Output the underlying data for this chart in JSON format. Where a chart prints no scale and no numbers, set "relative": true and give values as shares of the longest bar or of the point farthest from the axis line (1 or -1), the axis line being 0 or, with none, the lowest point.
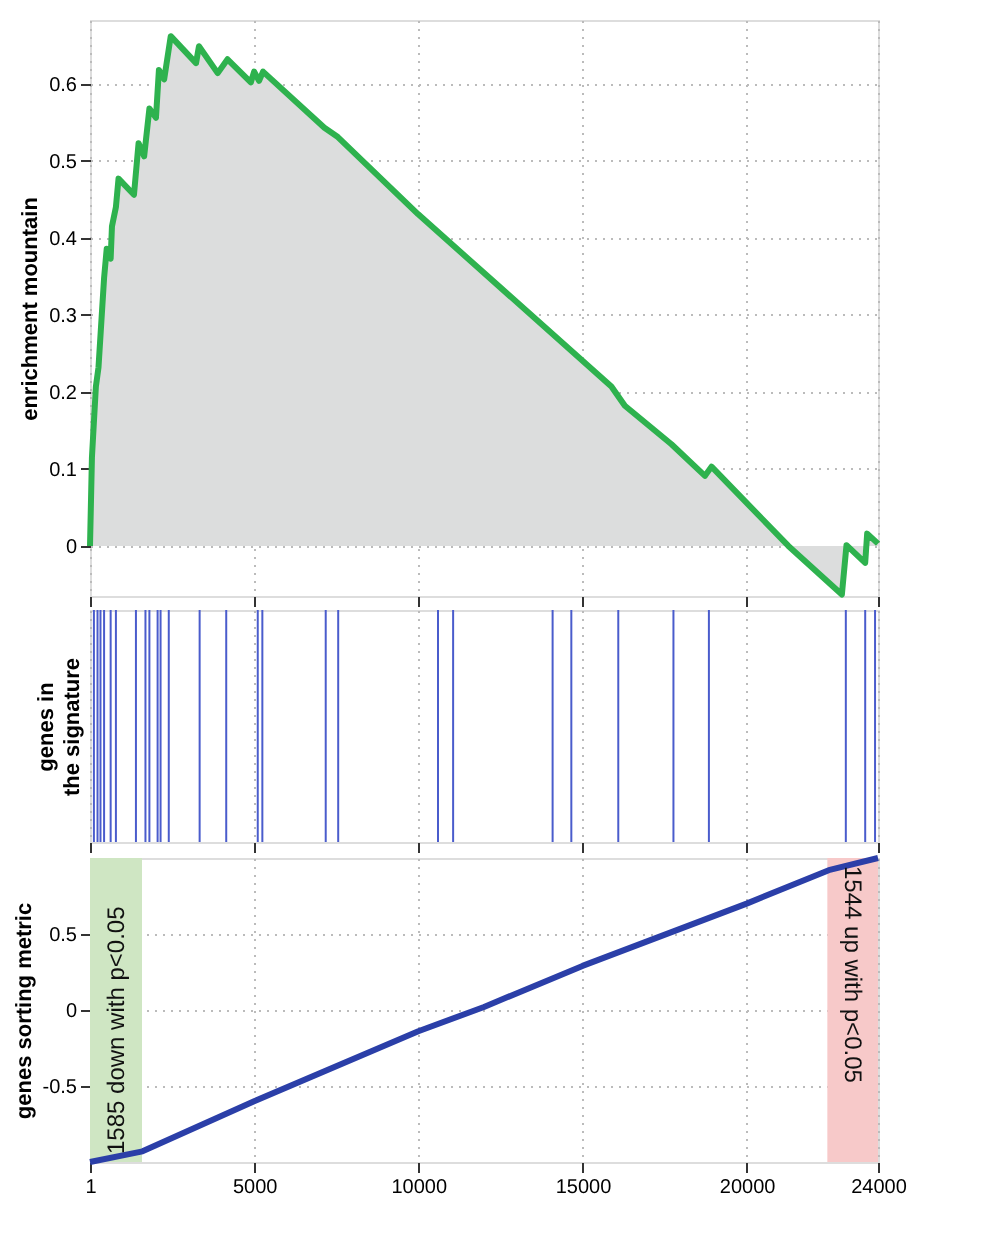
{
  "chart_data": [
    {
      "type": "area",
      "ylabel": "enrichment mountain",
      "xlim": [
        1,
        24000
      ],
      "xticks": [
        1,
        5000,
        10000,
        15000,
        20000,
        24000
      ],
      "ylim": [
        -0.065,
        0.683
      ],
      "yticks": [
        0,
        0.1,
        0.2,
        0.3,
        0.4,
        0.5,
        0.6
      ],
      "grid": true,
      "tick_labels": "y",
      "series": [
        {
          "color": "#2eb24e",
          "x": [
            1,
            60,
            180,
            260,
            430,
            510,
            630,
            670,
            790,
            870,
            1340,
            1480,
            1650,
            1810,
            2010,
            2100,
            2260,
            2460,
            3230,
            3320,
            3890,
            4190,
            4900,
            5000,
            5150,
            5270,
            7140,
            7550,
            9990,
            15880,
            16290,
            17710,
            18730,
            18930,
            21270,
            22900,
            23040,
            23610,
            23670,
            24000
          ],
          "values": [
            0,
            0.115,
            0.207,
            0.232,
            0.348,
            0.386,
            0.373,
            0.415,
            0.44,
            0.477,
            0.456,
            0.523,
            0.506,
            0.568,
            0.556,
            0.618,
            0.606,
            0.662,
            0.627,
            0.649,
            0.614,
            0.632,
            0.602,
            0.616,
            0.604,
            0.616,
            0.543,
            0.531,
            0.431,
            0.207,
            0.182,
            0.132,
            0.091,
            0.103,
            0,
            -0.063,
            0.001,
            -0.022,
            0.016,
            0.003
          ]
        }
      ]
    },
    {
      "type": "bar",
      "ylabel": "genes in\nthe signature",
      "xlim": [
        1,
        24000
      ],
      "xticks": [
        1,
        5000,
        10000,
        15000,
        20000,
        24000
      ],
      "relative": true,
      "grid": "x",
      "tick_labels": false,
      "series": [
        {
          "color": "#4a5ccc",
          "x": [
            120,
            230,
            320,
            430,
            630,
            790,
            1400,
            1690,
            1810,
            2060,
            2150,
            2400,
            3340,
            4150,
            5110,
            5250,
            7180,
            7560,
            10600,
            11060,
            14090,
            14660,
            16090,
            17770,
            18850,
            23020,
            23610,
            23910
          ],
          "values": [
            1,
            1,
            1,
            1,
            1,
            1,
            1,
            1,
            1,
            1,
            1,
            1,
            1,
            1,
            1,
            1,
            1,
            1,
            1,
            1,
            1,
            1,
            1,
            1,
            1,
            1,
            1,
            1
          ]
        }
      ]
    },
    {
      "type": "line",
      "ylabel": "genes sorting metric",
      "xlim": [
        1,
        24000
      ],
      "xticks": [
        1,
        5000,
        10000,
        15000,
        20000,
        24000
      ],
      "ylim": [
        -1,
        1
      ],
      "yticks": [
        -0.5,
        0,
        0.5
      ],
      "grid": true,
      "bands": [
        {
          "axis": "x",
          "from": 1,
          "to": 1585,
          "label": "1585 down with p<0.05",
          "color": "#cfe6c3"
        },
        {
          "axis": "x",
          "from": 22457,
          "to": 24000,
          "label": "1544 up with p<0.05",
          "color": "#f7c9c9"
        }
      ],
      "series": [
        {
          "color": "#2b3fa8",
          "x": [
            1,
            1600,
            5000,
            10000,
            12000,
            15000,
            20000,
            22500,
            24000
          ],
          "values": [
            -1,
            -0.93,
            -0.6,
            -0.14,
            0.02,
            0.29,
            0.7,
            0.92,
            1
          ]
        }
      ]
    }
  ]
}
